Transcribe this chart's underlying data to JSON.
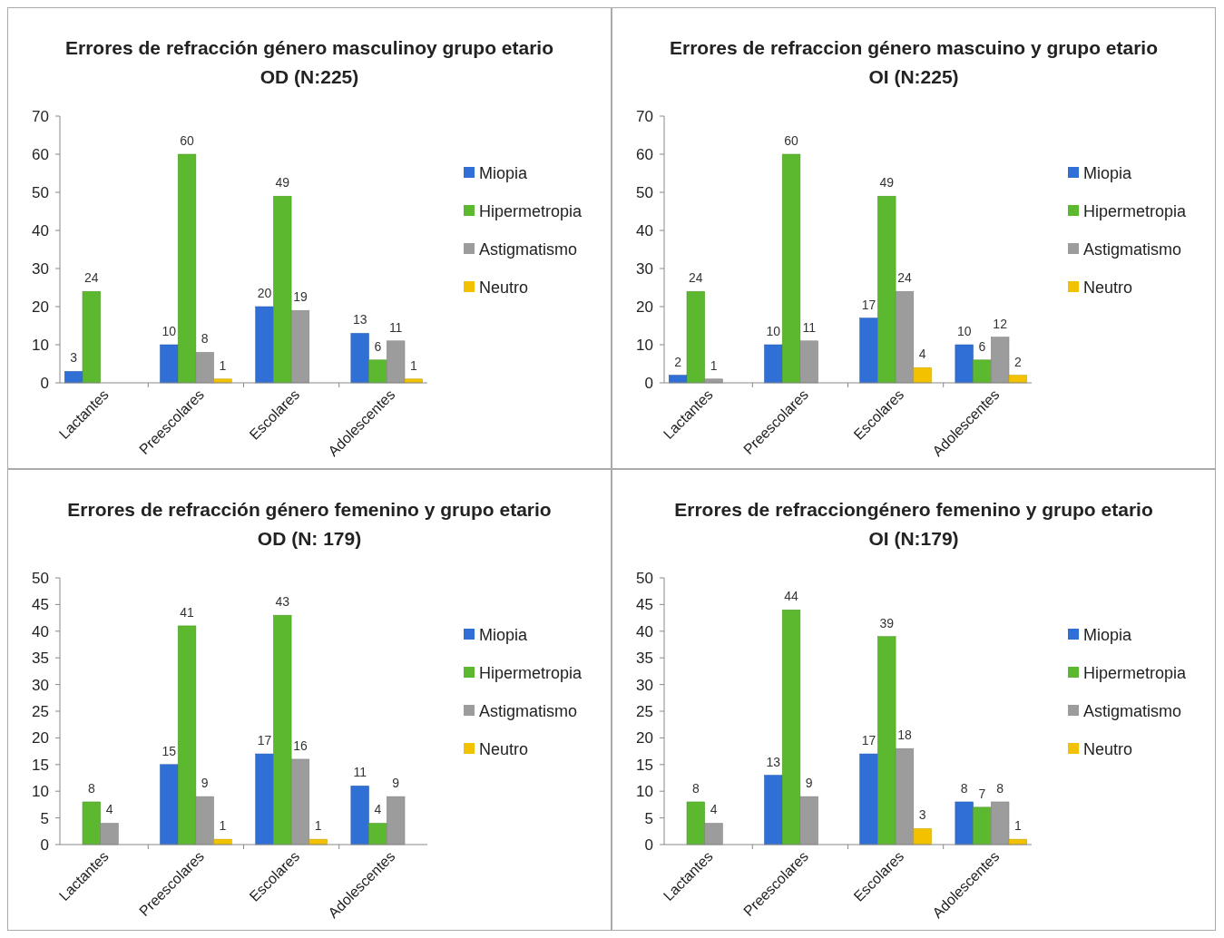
{
  "chart_data": [
    {
      "type": "bar",
      "title": "Errores de refracción género masculinoy grupo etario OD (N:225)",
      "categories": [
        "Lactantes",
        "Preescolares",
        "Escolares",
        "Adolescentes"
      ],
      "series": [
        {
          "name": "Miopia",
          "color": "#2f6fd6",
          "values": [
            3,
            10,
            20,
            13
          ]
        },
        {
          "name": "Hipermetropia",
          "color": "#5cb82e",
          "values": [
            24,
            60,
            49,
            6
          ]
        },
        {
          "name": "Astigmatismo",
          "color": "#9c9c9c",
          "values": [
            null,
            8,
            19,
            11
          ]
        },
        {
          "name": "Neutro",
          "color": "#f2c200",
          "values": [
            null,
            1,
            null,
            1
          ]
        }
      ],
      "ylim": [
        0,
        70
      ],
      "yticks": [
        0,
        10,
        20,
        30,
        40,
        50,
        60,
        70
      ],
      "grid": false,
      "legend": "right",
      "data_labels": true
    },
    {
      "type": "bar",
      "title": "Errores de refraccion género mascuino y grupo etario OI (N:225)",
      "categories": [
        "Lactantes",
        "Preescolares",
        "Escolares",
        "Adolescentes"
      ],
      "series": [
        {
          "name": "Miopia",
          "color": "#2f6fd6",
          "values": [
            2,
            10,
            17,
            10
          ]
        },
        {
          "name": "Hipermetropia",
          "color": "#5cb82e",
          "values": [
            24,
            60,
            49,
            6
          ]
        },
        {
          "name": "Astigmatismo",
          "color": "#9c9c9c",
          "values": [
            1,
            11,
            24,
            12
          ]
        },
        {
          "name": "Neutro",
          "color": "#f2c200",
          "values": [
            null,
            null,
            4,
            2
          ]
        }
      ],
      "ylim": [
        0,
        70
      ],
      "yticks": [
        0,
        10,
        20,
        30,
        40,
        50,
        60,
        70
      ],
      "grid": false,
      "legend": "right",
      "data_labels": true
    },
    {
      "type": "bar",
      "title": "Errores de refracción género femenino y grupo etario OD (N: 179)",
      "categories": [
        "Lactantes",
        "Preescolares",
        "Escolares",
        "Adolescentes"
      ],
      "series": [
        {
          "name": "Miopia",
          "color": "#2f6fd6",
          "values": [
            null,
            15,
            17,
            11
          ]
        },
        {
          "name": "Hipermetropia",
          "color": "#5cb82e",
          "values": [
            8,
            41,
            43,
            4
          ]
        },
        {
          "name": "Astigmatismo",
          "color": "#9c9c9c",
          "values": [
            4,
            9,
            16,
            9
          ]
        },
        {
          "name": "Neutro",
          "color": "#f2c200",
          "values": [
            null,
            1,
            1,
            null
          ]
        }
      ],
      "ylim": [
        0,
        50
      ],
      "yticks": [
        0,
        5,
        10,
        15,
        20,
        25,
        30,
        35,
        40,
        45,
        50
      ],
      "grid": false,
      "legend": "right",
      "data_labels": true
    },
    {
      "type": "bar",
      "title": "Errores de refracciongénero femenino y grupo etario OI (N:179)",
      "categories": [
        "Lactantes",
        "Preescolares",
        "Escolares",
        "Adolescentes"
      ],
      "series": [
        {
          "name": "Miopia",
          "color": "#2f6fd6",
          "values": [
            null,
            13,
            17,
            8
          ]
        },
        {
          "name": "Hipermetropia",
          "color": "#5cb82e",
          "values": [
            8,
            44,
            39,
            7
          ]
        },
        {
          "name": "Astigmatismo",
          "color": "#9c9c9c",
          "values": [
            4,
            9,
            18,
            8
          ]
        },
        {
          "name": "Neutro",
          "color": "#f2c200",
          "values": [
            null,
            null,
            3,
            1
          ]
        }
      ],
      "ylim": [
        0,
        50
      ],
      "yticks": [
        0,
        5,
        10,
        15,
        20,
        25,
        30,
        35,
        40,
        45,
        50
      ],
      "grid": false,
      "legend": "right",
      "data_labels": true
    }
  ]
}
